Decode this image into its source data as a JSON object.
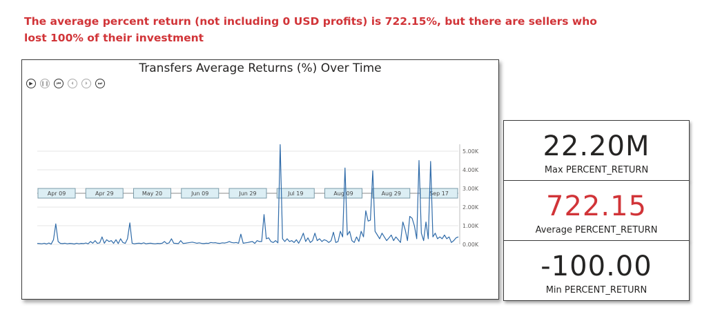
{
  "headline": "The average percent return (not including 0 USD profits) is 722.15%, but there are sellers who lost 100% of their investment",
  "chart_data": {
    "type": "line",
    "title": "Transfers Average Returns (%) Over Time",
    "y_ticks": [
      "0.00K",
      "1.00K",
      "2.00K",
      "3.00K",
      "4.00K",
      "5.00K"
    ],
    "ylim": [
      0,
      5000
    ],
    "grid": true,
    "x_labels": [
      "Apr 09",
      "Apr 29",
      "May 20",
      "Jun 09",
      "Jun 29",
      "Jul 19",
      "Aug 09",
      "Aug 29",
      "Sep 17"
    ],
    "x_start_day": 0,
    "x_end_day": 182,
    "series": [
      {
        "color": "#2e6aa8",
        "points": [
          [
            0,
            50
          ],
          [
            1,
            40
          ],
          [
            2,
            30
          ],
          [
            3,
            60
          ],
          [
            4,
            20
          ],
          [
            5,
            70
          ],
          [
            6,
            10
          ],
          [
            7,
            250
          ],
          [
            8,
            1100
          ],
          [
            9,
            150
          ],
          [
            10,
            50
          ],
          [
            11,
            40
          ],
          [
            12,
            60
          ],
          [
            13,
            30
          ],
          [
            14,
            50
          ],
          [
            15,
            40
          ],
          [
            16,
            20
          ],
          [
            17,
            60
          ],
          [
            18,
            30
          ],
          [
            19,
            50
          ],
          [
            20,
            40
          ],
          [
            21,
            70
          ],
          [
            22,
            30
          ],
          [
            23,
            150
          ],
          [
            24,
            60
          ],
          [
            25,
            200
          ],
          [
            26,
            50
          ],
          [
            27,
            80
          ],
          [
            28,
            400
          ],
          [
            29,
            60
          ],
          [
            30,
            250
          ],
          [
            31,
            150
          ],
          [
            32,
            200
          ],
          [
            33,
            50
          ],
          [
            34,
            250
          ],
          [
            35,
            40
          ],
          [
            36,
            300
          ],
          [
            37,
            100
          ],
          [
            38,
            50
          ],
          [
            39,
            300
          ],
          [
            40,
            1150
          ],
          [
            41,
            60
          ],
          [
            42,
            30
          ],
          [
            43,
            50
          ],
          [
            44,
            60
          ],
          [
            45,
            40
          ],
          [
            46,
            80
          ],
          [
            47,
            30
          ],
          [
            48,
            50
          ],
          [
            49,
            60
          ],
          [
            50,
            40
          ],
          [
            51,
            30
          ],
          [
            52,
            50
          ],
          [
            53,
            40
          ],
          [
            54,
            60
          ],
          [
            55,
            150
          ],
          [
            56,
            40
          ],
          [
            57,
            80
          ],
          [
            58,
            300
          ],
          [
            59,
            60
          ],
          [
            60,
            50
          ],
          [
            61,
            40
          ],
          [
            62,
            200
          ],
          [
            63,
            50
          ],
          [
            64,
            60
          ],
          [
            65,
            80
          ],
          [
            66,
            100
          ],
          [
            67,
            120
          ],
          [
            68,
            90
          ],
          [
            69,
            60
          ],
          [
            70,
            80
          ],
          [
            71,
            50
          ],
          [
            72,
            40
          ],
          [
            73,
            60
          ],
          [
            74,
            50
          ],
          [
            75,
            100
          ],
          [
            76,
            80
          ],
          [
            77,
            90
          ],
          [
            78,
            60
          ],
          [
            79,
            50
          ],
          [
            80,
            80
          ],
          [
            81,
            70
          ],
          [
            82,
            100
          ],
          [
            83,
            150
          ],
          [
            84,
            100
          ],
          [
            85,
            80
          ],
          [
            86,
            100
          ],
          [
            87,
            60
          ],
          [
            88,
            550
          ],
          [
            89,
            60
          ],
          [
            90,
            80
          ],
          [
            91,
            100
          ],
          [
            92,
            130
          ],
          [
            93,
            150
          ],
          [
            94,
            50
          ],
          [
            95,
            200
          ],
          [
            96,
            150
          ],
          [
            97,
            150
          ],
          [
            98,
            1600
          ],
          [
            99,
            300
          ],
          [
            100,
            350
          ],
          [
            101,
            150
          ],
          [
            102,
            100
          ],
          [
            103,
            200
          ],
          [
            104,
            80
          ],
          [
            105,
            5350
          ],
          [
            106,
            300
          ],
          [
            107,
            150
          ],
          [
            108,
            300
          ],
          [
            109,
            150
          ],
          [
            110,
            200
          ],
          [
            111,
            100
          ],
          [
            112,
            250
          ],
          [
            113,
            60
          ],
          [
            114,
            300
          ],
          [
            115,
            600
          ],
          [
            116,
            150
          ],
          [
            117,
            350
          ],
          [
            118,
            100
          ],
          [
            119,
            200
          ],
          [
            120,
            600
          ],
          [
            121,
            200
          ],
          [
            122,
            300
          ],
          [
            123,
            150
          ],
          [
            124,
            250
          ],
          [
            125,
            200
          ],
          [
            126,
            100
          ],
          [
            127,
            200
          ],
          [
            128,
            650
          ],
          [
            129,
            100
          ],
          [
            130,
            150
          ],
          [
            131,
            700
          ],
          [
            132,
            400
          ],
          [
            133,
            4100
          ],
          [
            134,
            500
          ],
          [
            135,
            700
          ],
          [
            136,
            200
          ],
          [
            137,
            100
          ],
          [
            138,
            400
          ],
          [
            139,
            150
          ],
          [
            140,
            700
          ],
          [
            141,
            400
          ],
          [
            142,
            1800
          ],
          [
            143,
            1250
          ],
          [
            144,
            1300
          ],
          [
            145,
            3950
          ],
          [
            146,
            700
          ],
          [
            147,
            500
          ],
          [
            148,
            300
          ],
          [
            149,
            600
          ],
          [
            150,
            400
          ],
          [
            151,
            200
          ],
          [
            152,
            350
          ],
          [
            153,
            500
          ],
          [
            154,
            200
          ],
          [
            155,
            400
          ],
          [
            156,
            250
          ],
          [
            157,
            100
          ],
          [
            158,
            1200
          ],
          [
            159,
            800
          ],
          [
            160,
            200
          ],
          [
            161,
            1500
          ],
          [
            162,
            1400
          ],
          [
            163,
            1000
          ],
          [
            164,
            300
          ],
          [
            165,
            4500
          ],
          [
            166,
            600
          ],
          [
            167,
            200
          ],
          [
            168,
            1200
          ],
          [
            169,
            300
          ],
          [
            170,
            4450
          ],
          [
            171,
            400
          ],
          [
            172,
            600
          ],
          [
            173,
            300
          ],
          [
            174,
            400
          ],
          [
            175,
            300
          ],
          [
            176,
            500
          ],
          [
            177,
            300
          ],
          [
            178,
            400
          ],
          [
            179,
            100
          ],
          [
            180,
            200
          ],
          [
            181,
            350
          ],
          [
            182,
            400
          ]
        ]
      }
    ]
  },
  "kpis": [
    {
      "value": "22.20M",
      "label": "Max PERCENT_RETURN",
      "color": "#252423"
    },
    {
      "value": "722.15",
      "label": "Average PERCENT_RETURN",
      "color": "#d13438"
    },
    {
      "value": "-100.00",
      "label": "Min PERCENT_RETURN",
      "color": "#252423"
    }
  ]
}
